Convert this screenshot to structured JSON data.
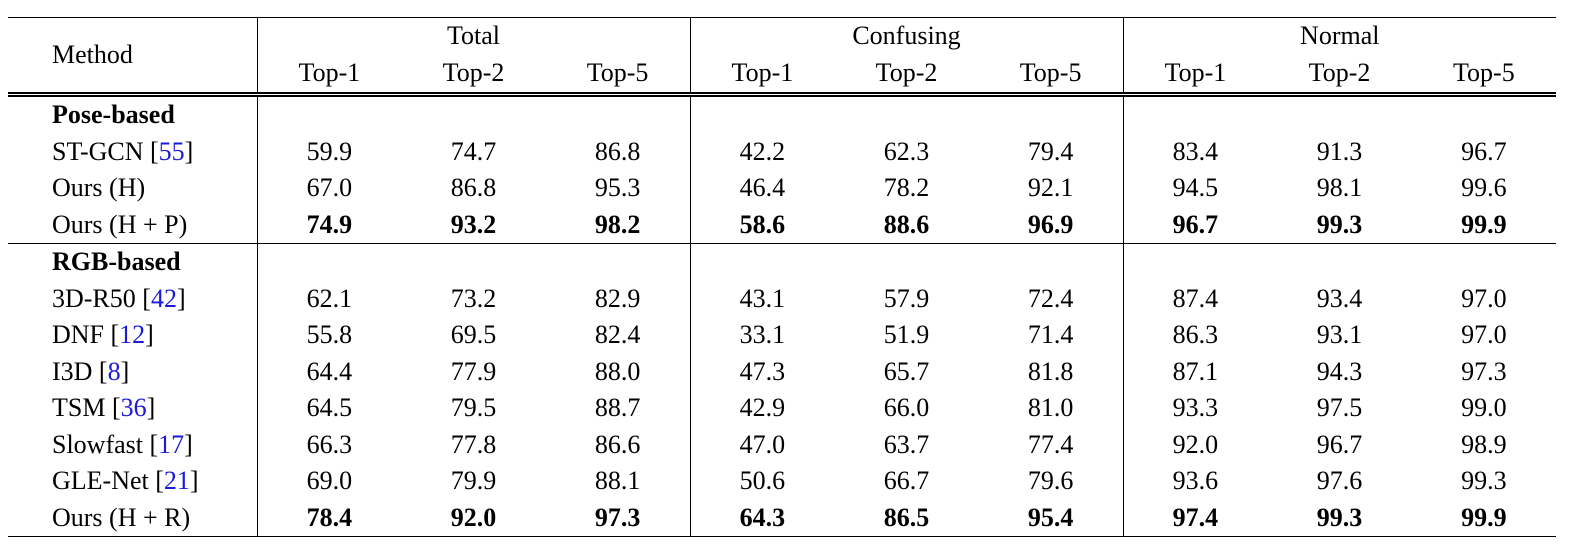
{
  "table": {
    "header": {
      "method": "Method",
      "groups": [
        "Total",
        "Confusing",
        "Normal"
      ],
      "metrics": [
        "Top-1",
        "Top-2",
        "Top-5"
      ]
    },
    "sections": [
      {
        "title": "Pose-based",
        "rows": [
          {
            "method": [
              "ST-GCN [",
              "55",
              "]"
            ],
            "values": [
              "59.9",
              "74.7",
              "86.8",
              "42.2",
              "62.3",
              "79.4",
              "83.4",
              "91.3",
              "96.7"
            ]
          },
          {
            "method": [
              "Ours (H)"
            ],
            "values": [
              "67.0",
              "86.8",
              "95.3",
              "46.4",
              "78.2",
              "92.1",
              "94.5",
              "98.1",
              "99.6"
            ]
          },
          {
            "method": [
              "Ours (H + P)"
            ],
            "bold": true,
            "values": [
              "74.9",
              "93.2",
              "98.2",
              "58.6",
              "88.6",
              "96.9",
              "96.7",
              "99.3",
              "99.9"
            ]
          }
        ]
      },
      {
        "title": "RGB-based",
        "rows": [
          {
            "method": [
              "3D-R50 [",
              "42",
              "]"
            ],
            "values": [
              "62.1",
              "73.2",
              "82.9",
              "43.1",
              "57.9",
              "72.4",
              "87.4",
              "93.4",
              "97.0"
            ]
          },
          {
            "method": [
              "DNF [",
              "12",
              "]"
            ],
            "values": [
              "55.8",
              "69.5",
              "82.4",
              "33.1",
              "51.9",
              "71.4",
              "86.3",
              "93.1",
              "97.0"
            ]
          },
          {
            "method": [
              "I3D [",
              "8",
              "]"
            ],
            "values": [
              "64.4",
              "77.9",
              "88.0",
              "47.3",
              "65.7",
              "81.8",
              "87.1",
              "94.3",
              "97.3"
            ]
          },
          {
            "method": [
              "TSM [",
              "36",
              "]"
            ],
            "values": [
              "64.5",
              "79.5",
              "88.7",
              "42.9",
              "66.0",
              "81.0",
              "93.3",
              "97.5",
              "99.0"
            ]
          },
          {
            "method": [
              "Slowfast [",
              "17",
              "]"
            ],
            "values": [
              "66.3",
              "77.8",
              "86.6",
              "47.0",
              "63.7",
              "77.4",
              "92.0",
              "96.7",
              "98.9"
            ]
          },
          {
            "method": [
              "GLE-Net [",
              "21",
              "]"
            ],
            "values": [
              "69.0",
              "79.9",
              "88.1",
              "50.6",
              "66.7",
              "79.6",
              "93.6",
              "97.6",
              "99.3"
            ]
          },
          {
            "method": [
              "Ours (H + R)"
            ],
            "bold": true,
            "values": [
              "78.4",
              "92.0",
              "97.3",
              "64.3",
              "86.5",
              "95.4",
              "97.4",
              "99.3",
              "99.9"
            ]
          }
        ]
      }
    ]
  }
}
